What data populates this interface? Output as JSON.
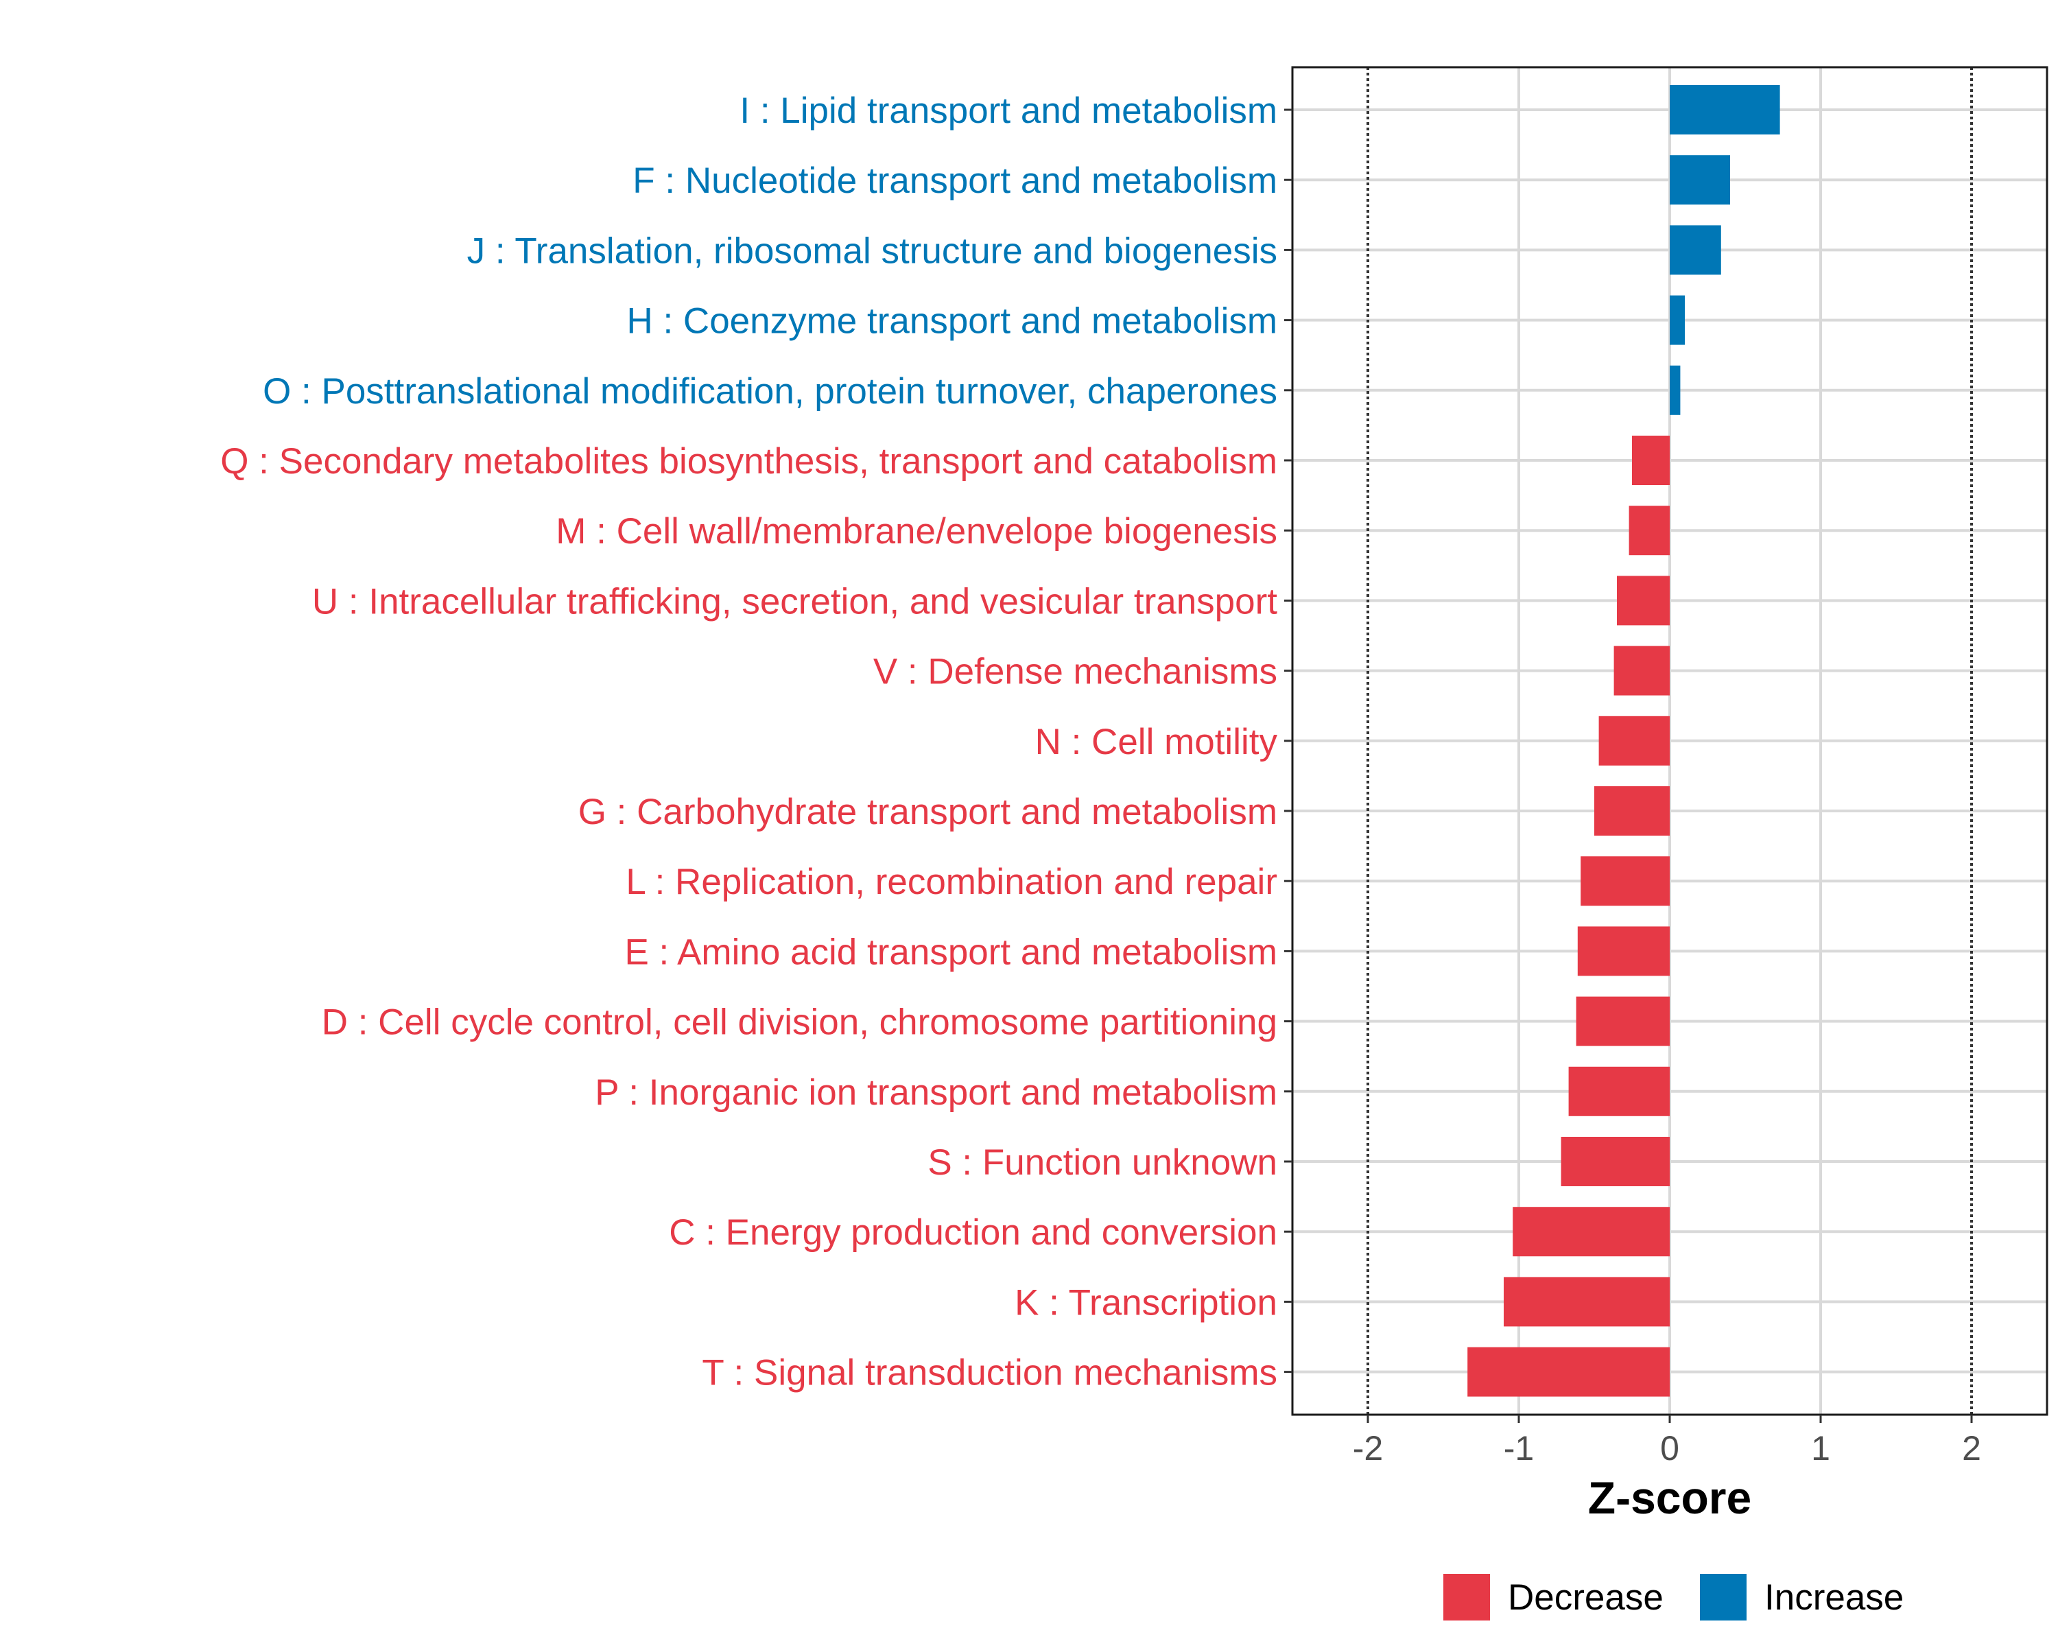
{
  "chart_data": {
    "type": "bar",
    "orientation": "horizontal",
    "title": "",
    "xlabel": "Z-score",
    "ylabel": "",
    "xlim": [
      -2.5,
      2.5
    ],
    "xticks": [
      -2,
      -1,
      0,
      1,
      2
    ],
    "xtick_labels": [
      "-2",
      "-1",
      "0",
      "1",
      "2"
    ],
    "reference_lines": [
      -2,
      2
    ],
    "grid": true,
    "legend_position": "bottom",
    "legend": [
      {
        "label": "Decrease",
        "color": "#e63946"
      },
      {
        "label": "Increase",
        "color": "#0077b6"
      }
    ],
    "categories": [
      {
        "label": "I : Lipid transport and metabolism",
        "value": 0.73,
        "direction": "Increase"
      },
      {
        "label": "F : Nucleotide transport and metabolism",
        "value": 0.4,
        "direction": "Increase"
      },
      {
        "label": "J : Translation, ribosomal structure and biogenesis",
        "value": 0.34,
        "direction": "Increase"
      },
      {
        "label": "H : Coenzyme transport and metabolism",
        "value": 0.1,
        "direction": "Increase"
      },
      {
        "label": "O : Posttranslational modification, protein turnover, chaperones",
        "value": 0.07,
        "direction": "Increase"
      },
      {
        "label": "Q : Secondary metabolites biosynthesis, transport and catabolism",
        "value": -0.25,
        "direction": "Decrease"
      },
      {
        "label": "M : Cell wall/membrane/envelope biogenesis",
        "value": -0.27,
        "direction": "Decrease"
      },
      {
        "label": "U : Intracellular trafficking, secretion, and vesicular transport",
        "value": -0.35,
        "direction": "Decrease"
      },
      {
        "label": "V : Defense mechanisms",
        "value": -0.37,
        "direction": "Decrease"
      },
      {
        "label": "N : Cell motility",
        "value": -0.47,
        "direction": "Decrease"
      },
      {
        "label": "G : Carbohydrate transport and metabolism",
        "value": -0.5,
        "direction": "Decrease"
      },
      {
        "label": "L : Replication, recombination and repair",
        "value": -0.59,
        "direction": "Decrease"
      },
      {
        "label": "E : Amino acid transport and metabolism",
        "value": -0.61,
        "direction": "Decrease"
      },
      {
        "label": "D : Cell cycle control, cell division, chromosome partitioning",
        "value": -0.62,
        "direction": "Decrease"
      },
      {
        "label": "P : Inorganic ion transport and metabolism",
        "value": -0.67,
        "direction": "Decrease"
      },
      {
        "label": "S : Function unknown",
        "value": -0.72,
        "direction": "Decrease"
      },
      {
        "label": "C : Energy production and conversion",
        "value": -1.04,
        "direction": "Decrease"
      },
      {
        "label": "K : Transcription",
        "value": -1.1,
        "direction": "Decrease"
      },
      {
        "label": "T : Signal transduction mechanisms",
        "value": -1.34,
        "direction": "Decrease"
      }
    ]
  }
}
